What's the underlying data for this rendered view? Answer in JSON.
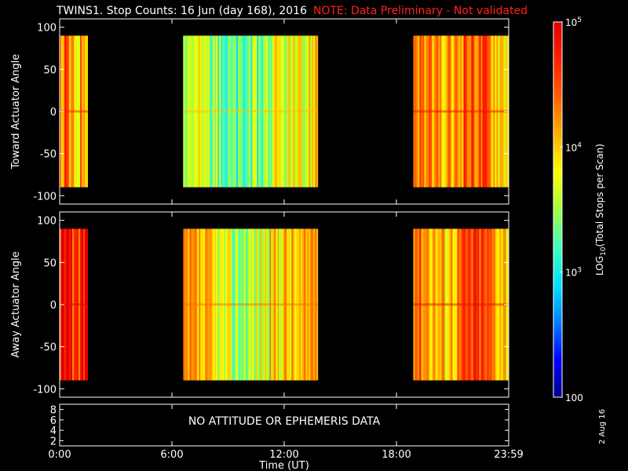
{
  "title": "TWINS1. Stop Counts: 16 Jun (day 168), 2016",
  "note": "NOTE: Data Preliminary - Not validated",
  "datestamp": "2 Aug 16",
  "chart_data": [
    {
      "type": "heatmap",
      "ylabel": "Toward Actuator Angle",
      "ylim": [
        -110,
        110
      ],
      "yticks": [
        100,
        50,
        0,
        -50,
        -100
      ],
      "angle_range": [
        -90,
        90
      ],
      "segments": [
        {
          "start_hour": 0.0,
          "end_hour": 1.5,
          "log10_level": 4.15
        },
        {
          "start_hour": 6.6,
          "end_hour": 13.8,
          "log10_level": 3.45
        },
        {
          "start_hour": 18.9,
          "end_hour": 24.0,
          "log10_level": 4.25
        }
      ]
    },
    {
      "type": "heatmap",
      "ylabel": "Away Actuator Angle",
      "ylim": [
        -110,
        110
      ],
      "yticks": [
        100,
        50,
        0,
        -50,
        -100
      ],
      "angle_range": [
        -90,
        90
      ],
      "segments": [
        {
          "start_hour": 0.0,
          "end_hour": 1.5,
          "log10_level": 4.7
        },
        {
          "start_hour": 6.6,
          "end_hour": 13.8,
          "log10_level": 3.75
        },
        {
          "start_hour": 18.9,
          "end_hour": 24.0,
          "log10_level": 4.3
        }
      ]
    },
    {
      "type": "table",
      "yticks": [
        8,
        6,
        4,
        2
      ],
      "message": "NO ATTITUDE OR EPHEMERIS DATA"
    }
  ],
  "x_axis": {
    "label": "Time (UT)",
    "range_hours": [
      0,
      24
    ],
    "ticks": [
      {
        "hour": 0,
        "label": "0:00"
      },
      {
        "hour": 6,
        "label": "6:00"
      },
      {
        "hour": 12,
        "label": "12:00"
      },
      {
        "hour": 18,
        "label": "18:00"
      },
      {
        "hour": 24,
        "label": "23:59"
      }
    ]
  },
  "colorbar": {
    "label": "LOG10(Total Stops per Scan)",
    "range_log10": [
      2,
      5
    ],
    "ticks": [
      {
        "log10": 5,
        "label": "10^5"
      },
      {
        "log10": 4,
        "label": "10^4"
      },
      {
        "log10": 3,
        "label": "10^3"
      },
      {
        "log10": 2,
        "label": "100"
      }
    ],
    "colors": [
      "#00008a",
      "#0000ff",
      "#0080ff",
      "#00e0ff",
      "#40ffc0",
      "#a0ff40",
      "#ffff00",
      "#ffb000",
      "#ff6000",
      "#ff2000",
      "#e00000"
    ]
  }
}
